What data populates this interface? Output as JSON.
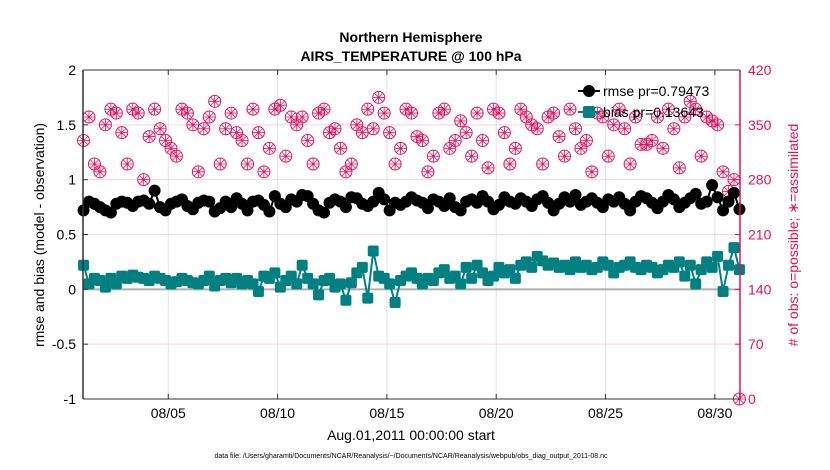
{
  "chart_data": {
    "type": "line",
    "title": "Northern Hemisphere",
    "subtitle": "AIRS_TEMPERATURE @ 100 hPa",
    "xlabel": "Aug.01,2011 00:00:00 start",
    "ylabel": "rmse and bias (model - observation)",
    "ylabel_right": "# of obs: o=possible; ∗=assimilated",
    "footnote": "data file: /Users/gharamti/Documents/NCAR/Reanalysis/~/Documents/NCAR/Reanalysis/webpub/obs_diag_output_2011-08.nc",
    "xlim": [
      1.1,
      31.15
    ],
    "ylim": [
      -1,
      2
    ],
    "ylim_right": [
      0,
      420
    ],
    "x_ticks": [
      5,
      10,
      15,
      20,
      25,
      30
    ],
    "x_tick_labels": [
      "08/05",
      "08/10",
      "08/15",
      "08/20",
      "08/25",
      "08/30"
    ],
    "y_ticks": [
      -1,
      -0.5,
      0,
      0.5,
      1,
      1.5,
      2
    ],
    "y_tick_labels": [
      "-1",
      "-0.5",
      "0",
      "0.5",
      "1",
      "1.5",
      "2"
    ],
    "y_right_ticks": [
      0,
      70,
      140,
      210,
      280,
      350,
      420
    ],
    "y_right_tick_labels": [
      "0",
      "70",
      "140",
      "210",
      "280",
      "350",
      "420"
    ],
    "grid": true,
    "legend_position": "top-right",
    "x_start": 1.125,
    "x_step": 0.25,
    "colors": {
      "rmse": "#000000",
      "bias": "#008080",
      "obs": "#e0115f",
      "axis_right": "#e0115f",
      "zero_line": "#b0b0b0"
    },
    "series": [
      {
        "name": "rmse",
        "legend": "rmse pr=0.79473",
        "values": [
          0.72,
          0.8,
          0.78,
          0.75,
          0.72,
          0.7,
          0.78,
          0.8,
          0.79,
          0.76,
          0.8,
          0.81,
          0.78,
          0.9,
          0.75,
          0.72,
          0.78,
          0.8,
          0.82,
          0.76,
          0.73,
          0.79,
          0.81,
          0.8,
          0.71,
          0.74,
          0.8,
          0.75,
          0.83,
          0.78,
          0.72,
          0.8,
          0.81,
          0.77,
          0.71,
          0.85,
          0.78,
          0.75,
          0.82,
          0.8,
          0.86,
          0.85,
          0.78,
          0.72,
          0.7,
          0.79,
          0.82,
          0.8,
          0.75,
          0.84,
          0.83,
          0.78,
          0.76,
          0.8,
          0.88,
          0.82,
          0.72,
          0.79,
          0.77,
          0.8,
          0.84,
          0.81,
          0.79,
          0.74,
          0.82,
          0.8,
          0.76,
          0.83,
          0.75,
          0.72,
          0.8,
          0.82,
          0.79,
          0.85,
          0.8,
          0.73,
          0.77,
          0.84,
          0.8,
          0.78,
          0.83,
          0.8,
          0.76,
          0.82,
          0.85,
          0.79,
          0.72,
          0.78,
          0.84,
          0.8,
          0.86,
          0.77,
          0.8,
          0.83,
          0.79,
          0.75,
          0.82,
          0.8,
          0.84,
          0.78,
          0.72,
          0.8,
          0.85,
          0.83,
          0.79,
          0.74,
          0.8,
          0.86,
          0.82,
          0.75,
          0.79,
          0.83,
          0.87,
          0.78,
          0.8,
          0.95,
          0.84,
          0.72,
          0.8,
          0.88,
          0.73
        ]
      },
      {
        "name": "bias",
        "legend": "bias pr=0.13643",
        "values": [
          0.22,
          0.05,
          0.1,
          0.08,
          0.02,
          0.1,
          0.05,
          0.12,
          0.1,
          0.13,
          0.11,
          0.1,
          0.08,
          0.12,
          0.1,
          0.08,
          0.05,
          0.07,
          0.1,
          0.08,
          0.06,
          0.05,
          0.08,
          0.12,
          0.03,
          0.08,
          0.1,
          0.06,
          0.1,
          0.05,
          0.08,
          0.05,
          -0.02,
          0.12,
          0.1,
          0.15,
          0.02,
          0.08,
          0.12,
          0.05,
          0.22,
          0.1,
          0.05,
          -0.05,
          0.08,
          0.1,
          0.02,
          0.05,
          -0.1,
          0.06,
          0.15,
          0.2,
          -0.08,
          0.35,
          0.12,
          0.1,
          0.05,
          -0.12,
          0.08,
          0.12,
          0.15,
          0.1,
          0.05,
          0.1,
          0.08,
          0.15,
          0.18,
          0.1,
          0.12,
          0.05,
          0.2,
          0.1,
          0.22,
          0.15,
          0.08,
          0.12,
          0.2,
          0.15,
          0.18,
          0.1,
          0.22,
          0.25,
          0.2,
          0.3,
          0.26,
          0.22,
          0.24,
          0.2,
          0.22,
          0.18,
          0.25,
          0.2,
          0.22,
          0.18,
          0.2,
          0.25,
          0.22,
          0.15,
          0.2,
          0.22,
          0.25,
          0.2,
          0.18,
          0.22,
          0.2,
          0.15,
          0.18,
          0.22,
          0.2,
          0.25,
          0.12,
          0.22,
          0.05,
          0.18,
          0.25,
          0.2,
          0.3,
          -0.02,
          0.22,
          0.38,
          0.18
        ]
      },
      {
        "name": "obs_count",
        "axis": "right",
        "values": [
          330,
          360,
          300,
          290,
          350,
          370,
          365,
          340,
          300,
          370,
          365,
          280,
          335,
          370,
          345,
          330,
          320,
          310,
          370,
          365,
          350,
          290,
          345,
          360,
          380,
          300,
          345,
          365,
          340,
          330,
          300,
          370,
          340,
          290,
          320,
          370,
          375,
          310,
          360,
          350,
          360,
          330,
          300,
          365,
          370,
          340,
          345,
          320,
          290,
          300,
          350,
          340,
          370,
          345,
          385,
          365,
          340,
          300,
          320,
          370,
          365,
          335,
          330,
          290,
          310,
          365,
          370,
          320,
          330,
          355,
          340,
          310,
          365,
          330,
          295,
          370,
          365,
          340,
          300,
          320,
          370,
          360,
          350,
          345,
          300,
          360,
          365,
          335,
          310,
          370,
          345,
          320,
          330,
          290,
          365,
          360,
          310,
          350,
          370,
          345,
          300,
          360,
          325,
          325,
          330,
          360,
          320,
          370,
          345,
          295,
          360,
          380,
          370,
          310,
          360,
          355,
          350,
          290,
          265,
          280,
          0
        ]
      }
    ]
  }
}
